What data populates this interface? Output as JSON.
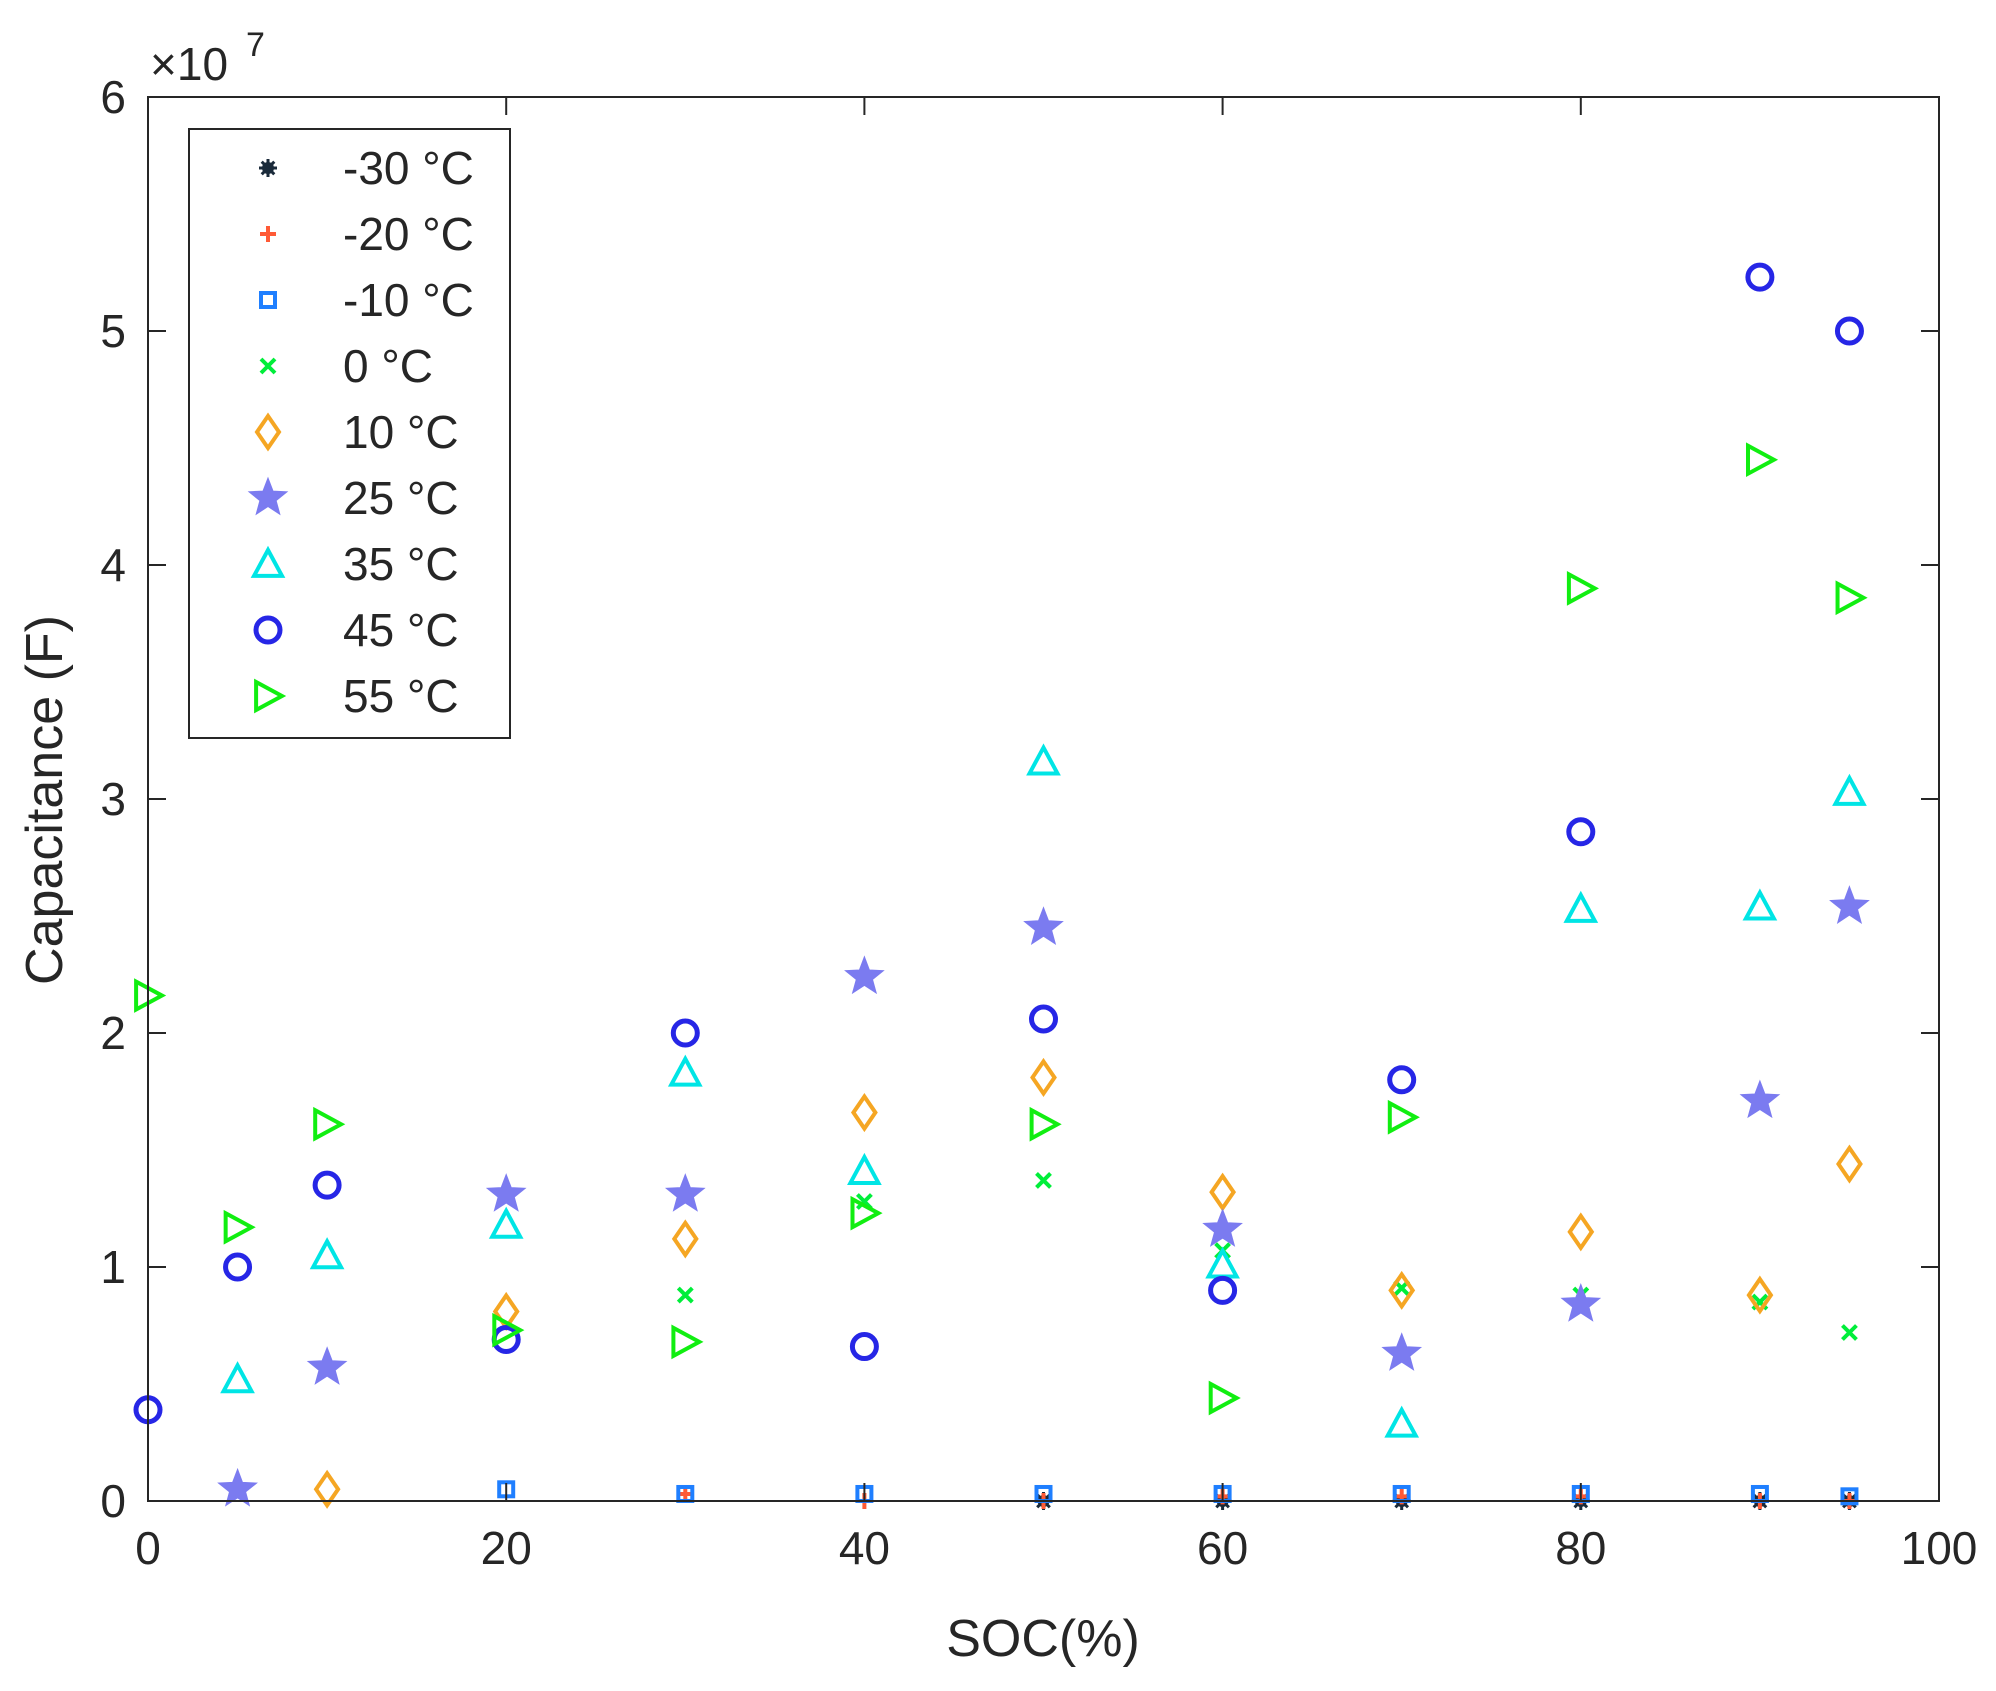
{
  "chart_data": {
    "type": "scatter",
    "title": "",
    "xlabel": "SOC(%)",
    "ylabel": "Capacitance (F)",
    "xlim": [
      0,
      100
    ],
    "ylim": [
      0,
      60000000
    ],
    "xticks": [
      0,
      20,
      40,
      60,
      80,
      100
    ],
    "yticks": [
      0,
      10000000,
      20000000,
      30000000,
      40000000,
      50000000,
      60000000
    ],
    "xtick_labels": [
      "0",
      "20",
      "40",
      "60",
      "80",
      "100"
    ],
    "ytick_labels": [
      "0",
      "1",
      "2",
      "3",
      "4",
      "5",
      "6"
    ],
    "y_exponent_base": "×10",
    "y_exponent_power": "7",
    "grid": false,
    "box": true,
    "legend_position": "top-left",
    "series": [
      {
        "name": "-30  °C",
        "marker": "asterisk",
        "color": "#1a2a3a",
        "x": [
          50,
          60,
          70,
          80,
          90,
          95
        ],
        "y": [
          0,
          0,
          0,
          0,
          0,
          0
        ]
      },
      {
        "name": "-20  °C",
        "marker": "plus",
        "color": "#ff5a36",
        "x": [
          30,
          40,
          50,
          60,
          70,
          80,
          90,
          95
        ],
        "y": [
          300000,
          0,
          0,
          200000,
          200000,
          200000,
          0,
          0
        ]
      },
      {
        "name": "-10  °C",
        "marker": "square",
        "color": "#1f7fff",
        "x": [
          20,
          30,
          40,
          50,
          60,
          70,
          80,
          90,
          95
        ],
        "y": [
          500000,
          300000,
          300000,
          300000,
          300000,
          300000,
          300000,
          300000,
          200000
        ]
      },
      {
        "name": "0  °C",
        "marker": "x",
        "color": "#00ee3a",
        "x": [
          30,
          40,
          50,
          60,
          70,
          80,
          90,
          95
        ],
        "y": [
          8800000,
          12800000,
          13700000,
          10700000,
          9100000,
          8800000,
          8500000,
          7200000
        ]
      },
      {
        "name": "10  °C",
        "marker": "diamond",
        "color": "#f5a623",
        "x": [
          10,
          20,
          30,
          40,
          50,
          60,
          70,
          80,
          90,
          95
        ],
        "y": [
          500000,
          8100000,
          11200000,
          16600000,
          18100000,
          13200000,
          9000000,
          11500000,
          8800000,
          14400000
        ]
      },
      {
        "name": "25  °C",
        "marker": "star",
        "color": "#7b7bf0",
        "x": [
          5,
          10,
          20,
          30,
          40,
          50,
          60,
          70,
          80,
          90,
          95
        ],
        "y": [
          500000,
          5700000,
          13100000,
          13100000,
          22400000,
          24500000,
          11600000,
          6300000,
          8400000,
          17100000,
          25400000
        ]
      },
      {
        "name": "35  °C",
        "marker": "triangle-up",
        "color": "#00e5e5",
        "x": [
          5,
          10,
          20,
          30,
          40,
          50,
          60,
          70,
          80,
          90,
          95
        ],
        "y": [
          5200000,
          10500000,
          11800000,
          18300000,
          14100000,
          31600000,
          10100000,
          3300000,
          25300000,
          25400000,
          30300000
        ]
      },
      {
        "name": "45  °C",
        "marker": "circle",
        "color": "#2626e6",
        "x": [
          0,
          5,
          10,
          20,
          30,
          40,
          50,
          60,
          70,
          80,
          90,
          95
        ],
        "y": [
          3900000,
          10000000,
          13500000,
          6900000,
          20000000,
          6600000,
          20600000,
          9000000,
          18000000,
          28600000,
          52300000,
          50000000
        ]
      },
      {
        "name": "55  °C",
        "marker": "triangle-right",
        "color": "#11ee11",
        "x": [
          0,
          5,
          10,
          20,
          30,
          40,
          50,
          60,
          70,
          80,
          90,
          95
        ],
        "y": [
          21600000,
          11700000,
          16100000,
          7300000,
          6800000,
          12300000,
          16100000,
          4400000,
          16400000,
          39000000,
          44500000,
          38600000
        ]
      }
    ]
  }
}
